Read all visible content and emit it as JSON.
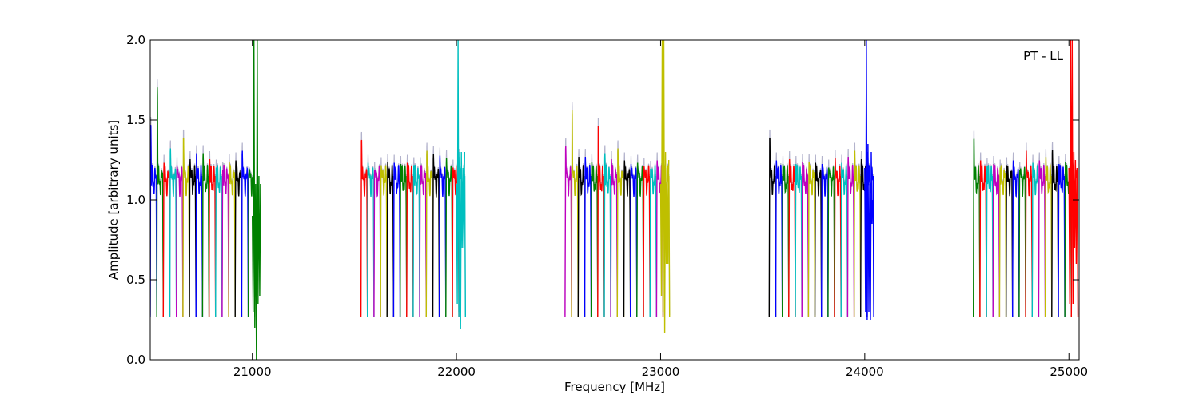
{
  "chart_data": {
    "type": "line",
    "title": "",
    "annotation": "PT - LL",
    "xlabel": "Frequency [MHz]",
    "ylabel": "Amplitude [arbitrary units]",
    "xlim": [
      20500,
      25050
    ],
    "ylim": [
      0.0,
      2.0
    ],
    "x_ticks": [
      21000,
      22000,
      23000,
      24000,
      25000
    ],
    "x_tick_labels": [
      "21000",
      "22000",
      "23000",
      "24000",
      "25000"
    ],
    "y_ticks": [
      0.0,
      0.5,
      1.0,
      1.5,
      2.0
    ],
    "y_tick_labels": [
      "0.0",
      "0.5",
      "1.0",
      "1.5",
      "2.0"
    ],
    "grid": false,
    "legend": "none",
    "color_cycle": [
      "#0000ff",
      "#008000",
      "#ff0000",
      "#00bfbf",
      "#bf00bf",
      "#bfbf00",
      "#000000"
    ],
    "shadow_color": "#b3b3cc",
    "subbands": [
      {
        "start": 20500,
        "color": "#0000ff",
        "peak": 1.55
      },
      {
        "start": 20532,
        "color": "#008000",
        "peak": 1.8
      },
      {
        "start": 20564,
        "color": "#ff0000",
        "peak": 1.25
      },
      {
        "start": 20596,
        "color": "#00bfbf",
        "peak": 1.37
      },
      {
        "start": 20628,
        "color": "#bf00bf",
        "peak": 1.23
      },
      {
        "start": 20660,
        "color": "#bfbf00",
        "peak": 1.46
      },
      {
        "start": 20692,
        "color": "#000000",
        "peak": 1.28
      },
      {
        "start": 20724,
        "color": "#0000ff",
        "peak": 1.33
      },
      {
        "start": 20756,
        "color": "#008000",
        "peak": 1.33
      },
      {
        "start": 20788,
        "color": "#ff0000",
        "peak": 1.28
      },
      {
        "start": 20820,
        "color": "#00bfbf",
        "peak": 1.21
      },
      {
        "start": 20852,
        "color": "#bf00bf",
        "peak": 1.19
      },
      {
        "start": 20884,
        "color": "#bfbf00",
        "peak": 1.26
      },
      {
        "start": 20916,
        "color": "#000000",
        "peak": 1.27
      },
      {
        "start": 20948,
        "color": "#0000ff",
        "peak": 1.35
      },
      {
        "start": 20980,
        "color": "#008000",
        "peak": 1.16
      },
      {
        "start": 21532,
        "color": "#ff0000",
        "peak": 1.44
      },
      {
        "start": 21564,
        "color": "#00bfbf",
        "peak": 1.25
      },
      {
        "start": 21596,
        "color": "#bf00bf",
        "peak": 1.19
      },
      {
        "start": 21628,
        "color": "#bfbf00",
        "peak": 1.23
      },
      {
        "start": 21660,
        "color": "#000000",
        "peak": 1.26
      },
      {
        "start": 21692,
        "color": "#0000ff",
        "peak": 1.25
      },
      {
        "start": 21724,
        "color": "#008000",
        "peak": 1.24
      },
      {
        "start": 21756,
        "color": "#ff0000",
        "peak": 1.25
      },
      {
        "start": 21788,
        "color": "#00bfbf",
        "peak": 1.23
      },
      {
        "start": 21820,
        "color": "#bf00bf",
        "peak": 1.23
      },
      {
        "start": 21852,
        "color": "#bfbf00",
        "peak": 1.35
      },
      {
        "start": 21884,
        "color": "#000000",
        "peak": 1.32
      },
      {
        "start": 21916,
        "color": "#0000ff",
        "peak": 1.31
      },
      {
        "start": 21948,
        "color": "#008000",
        "peak": 1.29
      },
      {
        "start": 21980,
        "color": "#ff0000",
        "peak": 1.21
      },
      {
        "start": 22012,
        "color": "#00bfbf",
        "peak": 1.3
      },
      {
        "start": 22532,
        "color": "#bf00bf",
        "peak": 1.39
      },
      {
        "start": 22564,
        "color": "#bfbf00",
        "peak": 1.65
      },
      {
        "start": 22596,
        "color": "#000000",
        "peak": 1.3
      },
      {
        "start": 22628,
        "color": "#0000ff",
        "peak": 1.3
      },
      {
        "start": 22660,
        "color": "#008000",
        "peak": 1.26
      },
      {
        "start": 22692,
        "color": "#ff0000",
        "peak": 1.54
      },
      {
        "start": 22724,
        "color": "#00bfbf",
        "peak": 1.33
      },
      {
        "start": 22756,
        "color": "#bf00bf",
        "peak": 1.28
      },
      {
        "start": 22788,
        "color": "#bfbf00",
        "peak": 1.37
      },
      {
        "start": 22820,
        "color": "#000000",
        "peak": 1.27
      },
      {
        "start": 22852,
        "color": "#0000ff",
        "peak": 1.24
      },
      {
        "start": 22884,
        "color": "#008000",
        "peak": 1.25
      },
      {
        "start": 22916,
        "color": "#ff0000",
        "peak": 1.22
      },
      {
        "start": 22948,
        "color": "#00bfbf",
        "peak": 1.2
      },
      {
        "start": 22980,
        "color": "#bf00bf",
        "peak": 1.27
      },
      {
        "start": 23012,
        "color": "#bfbf00",
        "peak": 1.27
      },
      {
        "start": 23532,
        "color": "#000000",
        "peak": 1.46
      },
      {
        "start": 23564,
        "color": "#0000ff",
        "peak": 1.27
      },
      {
        "start": 23596,
        "color": "#008000",
        "peak": 1.24
      },
      {
        "start": 23628,
        "color": "#ff0000",
        "peak": 1.28
      },
      {
        "start": 23660,
        "color": "#00bfbf",
        "peak": 1.24
      },
      {
        "start": 23692,
        "color": "#bf00bf",
        "peak": 1.26
      },
      {
        "start": 23724,
        "color": "#bfbf00",
        "peak": 1.26
      },
      {
        "start": 23756,
        "color": "#000000",
        "peak": 1.25
      },
      {
        "start": 23788,
        "color": "#0000ff",
        "peak": 1.24
      },
      {
        "start": 23820,
        "color": "#008000",
        "peak": 1.21
      },
      {
        "start": 23852,
        "color": "#ff0000",
        "peak": 1.29
      },
      {
        "start": 23884,
        "color": "#00bfbf",
        "peak": 1.25
      },
      {
        "start": 23916,
        "color": "#bf00bf",
        "peak": 1.3
      },
      {
        "start": 23948,
        "color": "#bfbf00",
        "peak": 1.35
      },
      {
        "start": 23980,
        "color": "#000000",
        "peak": 1.28
      },
      {
        "start": 24012,
        "color": "#0000ff",
        "peak": 1.34
      },
      {
        "start": 24532,
        "color": "#008000",
        "peak": 1.45
      },
      {
        "start": 24564,
        "color": "#ff0000",
        "peak": 1.27
      },
      {
        "start": 24596,
        "color": "#00bfbf",
        "peak": 1.22
      },
      {
        "start": 24628,
        "color": "#bf00bf",
        "peak": 1.24
      },
      {
        "start": 24660,
        "color": "#bfbf00",
        "peak": 1.21
      },
      {
        "start": 24692,
        "color": "#000000",
        "peak": 1.23
      },
      {
        "start": 24724,
        "color": "#0000ff",
        "peak": 1.27
      },
      {
        "start": 24756,
        "color": "#008000",
        "peak": 1.19
      },
      {
        "start": 24788,
        "color": "#ff0000",
        "peak": 1.35
      },
      {
        "start": 24820,
        "color": "#00bfbf",
        "peak": 1.25
      },
      {
        "start": 24852,
        "color": "#bf00bf",
        "peak": 1.27
      },
      {
        "start": 24884,
        "color": "#bfbf00",
        "peak": 1.3
      },
      {
        "start": 24916,
        "color": "#000000",
        "peak": 1.36
      },
      {
        "start": 24948,
        "color": "#0000ff",
        "peak": 1.24
      },
      {
        "start": 24980,
        "color": "#008000",
        "peak": 1.26
      },
      {
        "start": 25012,
        "color": "#ff0000",
        "peak": 1.3
      }
    ],
    "subband_width": 32,
    "trough_level": 0.27,
    "edge_spikes": [
      {
        "x": [
          21000,
          21004,
          21008,
          21012,
          21016,
          21020,
          21024,
          21028,
          21032,
          21036,
          21040
        ],
        "y": [
          0.9,
          0.3,
          2.0,
          0.2,
          1.1,
          0.0,
          2.0,
          0.35,
          1.15,
          0.4,
          1.1
        ],
        "color": "#008000"
      },
      {
        "x": [
          22000,
          22004,
          22008,
          22012,
          22016,
          22020,
          22024,
          22028,
          22032,
          22036,
          22040
        ],
        "y": [
          1.1,
          0.35,
          2.0,
          0.3,
          1.3,
          0.19,
          1.3,
          0.7,
          1.2,
          0.7,
          1.3
        ],
        "color": "#00bfbf"
      },
      {
        "x": [
          23000,
          23004,
          23008,
          23012,
          23016,
          23020,
          23024,
          23028,
          23032,
          23036,
          23040
        ],
        "y": [
          1.1,
          0.4,
          2.0,
          0.3,
          2.0,
          0.17,
          1.3,
          0.6,
          1.2,
          0.6,
          1.25
        ],
        "color": "#bfbf00"
      },
      {
        "x": [
          24000,
          24004,
          24008,
          24012,
          24016,
          24020,
          24024,
          24028,
          24032,
          24036,
          24040
        ],
        "y": [
          1.2,
          0.3,
          2.0,
          0.25,
          1.35,
          0.3,
          1.1,
          0.25,
          1.3,
          0.85,
          1.0
        ],
        "color": "#0000ff"
      },
      {
        "x": [
          25000,
          25004,
          25008,
          25012,
          25016,
          25020,
          25024,
          25028,
          25032,
          25036,
          25040
        ],
        "y": [
          1.2,
          0.35,
          2.0,
          0.6,
          2.0,
          0.35,
          1.3,
          0.7,
          1.25,
          0.6,
          1.2
        ],
        "color": "#ff0000"
      }
    ]
  }
}
